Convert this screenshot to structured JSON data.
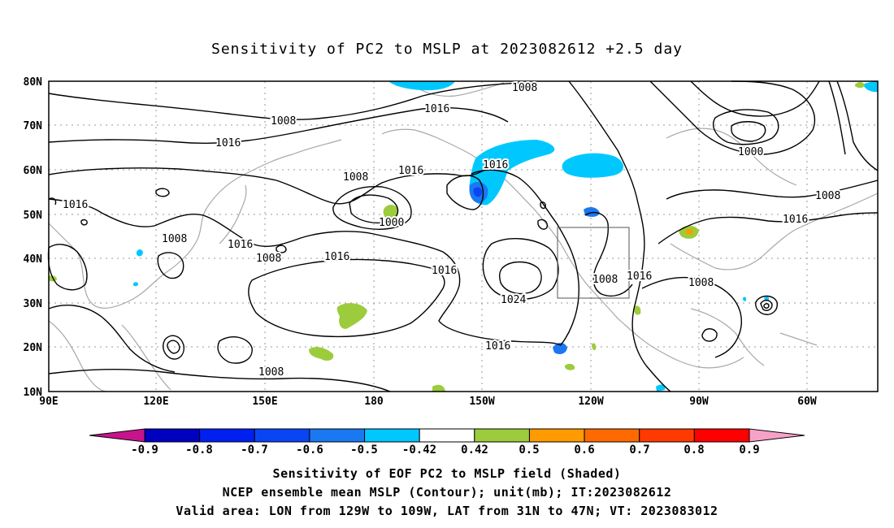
{
  "title": "Sensitivity of PC2 to MSLP at 2023082612 +2.5 day",
  "map": {
    "lon_labels": [
      "90E",
      "120E",
      "150E",
      "180",
      "150W",
      "120W",
      "90W",
      "60W"
    ],
    "lat_labels": [
      "80N",
      "70N",
      "60N",
      "50N",
      "40N",
      "30N",
      "20N",
      "10N"
    ],
    "contour_labels": [
      "1008",
      "1016",
      "1016",
      "1008",
      "1016",
      "1008",
      "1000",
      "1016",
      "1016",
      "1008",
      "1008",
      "1016",
      "1016",
      "1024",
      "1016",
      "1008",
      "1016",
      "1008",
      "1008",
      "1000",
      "1008",
      "1016",
      "1016",
      "1008"
    ],
    "valid_area_box": {
      "lon_from": "129W",
      "lon_to": "109W",
      "lat_from": "31N",
      "lat_to": "47N"
    }
  },
  "colorbar": {
    "labels": [
      "-0.9",
      "-0.8",
      "-0.7",
      "-0.6",
      "-0.5",
      "-0.42",
      "0.42",
      "0.5",
      "0.6",
      "0.7",
      "0.8",
      "0.9"
    ],
    "colors": [
      "#0000c0",
      "#0020f0",
      "#0a45f5",
      "#1a78f0",
      "#00c8ff",
      "#ffffff",
      "#9ccc3c",
      "#ff9a00",
      "#ff6a00",
      "#ff3a00",
      "#ff0000"
    ],
    "low_end_color": "#c8148c",
    "high_end_color": "#f6a2c8"
  },
  "captions": [
    "Sensitivity of EOF PC2 to MSLP field (Shaded)",
    "NCEP ensemble mean MSLP (Contour); unit(mb); IT:2023082612",
    "Valid area: LON from 129W to 109W, LAT from 31N to 47N; VT: 2023083012"
  ]
}
